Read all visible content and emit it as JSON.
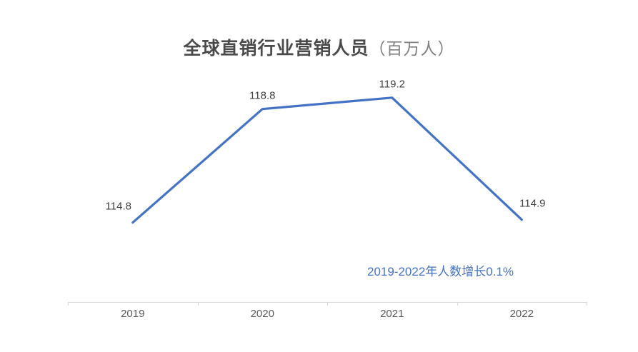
{
  "title": {
    "main": "全球直销行业营销人员",
    "unit": "（百万人）"
  },
  "annotation": {
    "text": "2019-2022年人数增长0.1%",
    "color": "#4472C4"
  },
  "chart_data": {
    "type": "line",
    "categories": [
      "2019",
      "2020",
      "2021",
      "2022"
    ],
    "values": [
      114.8,
      118.8,
      119.2,
      114.9
    ],
    "data_labels": [
      "114.8",
      "118.8",
      "119.2",
      "114.9"
    ],
    "title": "全球直销行业营销人员（百万人）",
    "xlabel": "",
    "ylabel": "",
    "ylim": [
      112,
      120
    ],
    "grid": false,
    "legend": "none",
    "line_color": "#4472C4",
    "label_color": "#3f3f3f",
    "axis_color": "#d9d9d9",
    "tick_label_color": "#595959"
  }
}
